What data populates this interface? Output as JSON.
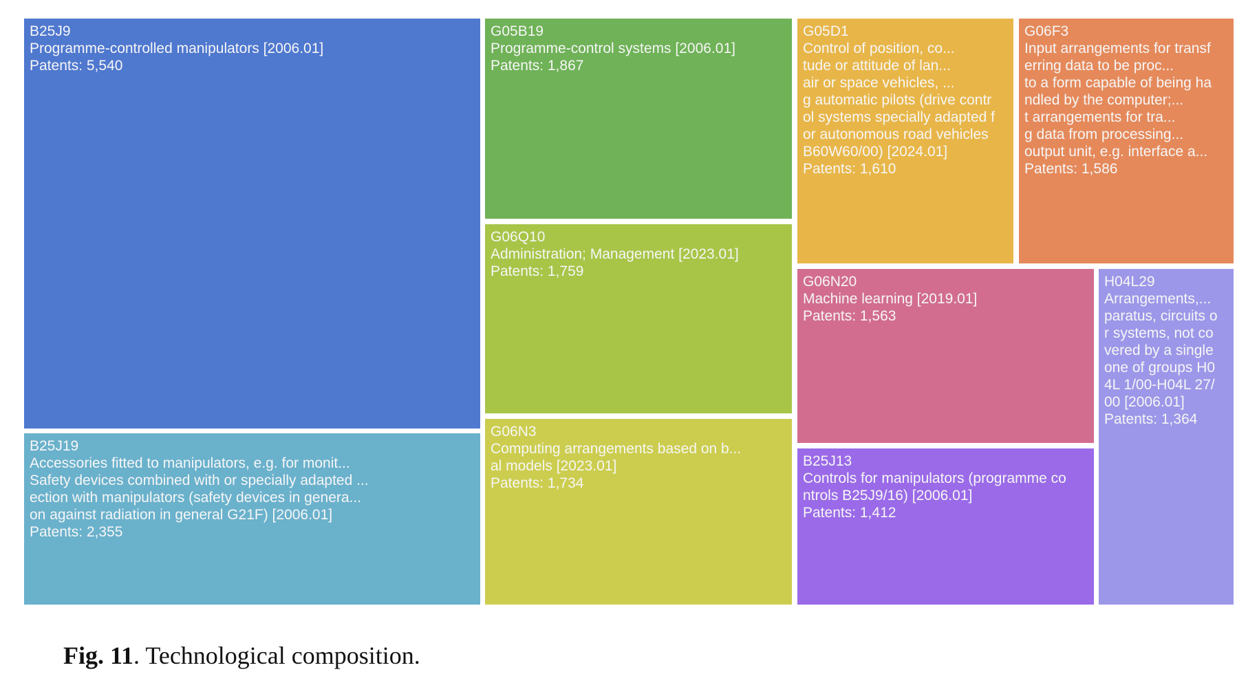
{
  "chart_data": {
    "type": "treemap",
    "value_label": "Patents",
    "items": [
      {
        "code": "B25J9",
        "label": "Programme-controlled manipulators [2006.01]",
        "patents_text": "Patents: 5,540",
        "value": 5540,
        "color": "#4f78cf"
      },
      {
        "code": "B25J19",
        "label": "Accessories fitted to manipulators, e.g. for monit...\nSafety devices combined with or specially adapted ...\nection with manipulators (safety devices in genera...\non against radiation in general G21F) [2006.01]",
        "patents_text": "Patents: 2,355",
        "value": 2355,
        "color": "#6ab1cc"
      },
      {
        "code": "G05B19",
        "label": "Programme-control systems [2006.01]",
        "patents_text": "Patents: 1,867",
        "value": 1867,
        "color": "#6fb257"
      },
      {
        "code": "G06Q10",
        "label": "Administration; Management [2023.01]",
        "patents_text": "Patents: 1,759",
        "value": 1759,
        "color": "#a8c548"
      },
      {
        "code": "G06N3",
        "label": "Computing arrangements based on b...\nal models [2023.01]",
        "patents_text": "Patents: 1,734",
        "value": 1734,
        "color": "#cccd4f"
      },
      {
        "code": "G05D1",
        "label": "Control of position, co...\ntude or attitude of lan...\nair or space vehicles, ...\ng automatic pilots (drive contr\nol systems specially adapted f\nor autonomous road vehicles\nB60W60/00) [2024.01]",
        "patents_text": "Patents: 1,610",
        "value": 1610,
        "color": "#e8b648"
      },
      {
        "code": "G06F3",
        "label": "Input arrangements for transf\nerring data to be proc...\nto a form capable of being ha\nndled by the computer;...\nt arrangements for tra...\ng data from processing...\noutput unit, e.g. interface a...",
        "patents_text": "Patents: 1,586",
        "value": 1586,
        "color": "#e5895a"
      },
      {
        "code": "G06N20",
        "label": "Machine learning [2019.01]",
        "patents_text": "Patents: 1,563",
        "value": 1563,
        "color": "#d26d90"
      },
      {
        "code": "B25J13",
        "label": "Controls for manipulators (programme co\nntrols B25J9/16) [2006.01]",
        "patents_text": "Patents: 1,412",
        "value": 1412,
        "color": "#9a6ae8"
      },
      {
        "code": "H04L29",
        "label": "Arrangements,...\nparatus, circuits o\nr systems, not co\nvered by a single\none of groups H0\n4L 1/00-H04L 27/\n00 [2006.01]",
        "patents_text": "Patents: 1,364",
        "value": 1364,
        "color": "#9c97e8"
      }
    ]
  },
  "caption": {
    "label": "Fig. 11",
    "text": ". Technological composition."
  }
}
